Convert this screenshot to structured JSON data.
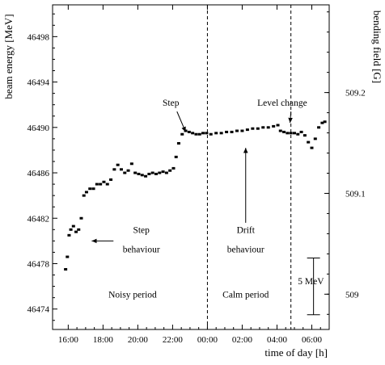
{
  "chart_data": {
    "type": "scatter",
    "title": "",
    "xlabel": "time of day [h]",
    "ylabel": "beam energy [MeV]",
    "y2label": "bending field [G]",
    "xlim": [
      15.1,
      31.0
    ],
    "ylim": [
      46472.2,
      46500.8
    ],
    "y2lim": [
      508.965,
      509.287
    ],
    "grid": false,
    "x_ticks": [
      {
        "value": 16,
        "label": "16:00"
      },
      {
        "value": 18,
        "label": "18:00"
      },
      {
        "value": 20,
        "label": "20:00"
      },
      {
        "value": 22,
        "label": "22:00"
      },
      {
        "value": 24,
        "label": "00:00"
      },
      {
        "value": 26,
        "label": "02:00"
      },
      {
        "value": 28,
        "label": "04:00"
      },
      {
        "value": 30,
        "label": "06:00"
      }
    ],
    "y_ticks": [
      46474,
      46478,
      46482,
      46486,
      46490,
      46494,
      46498
    ],
    "y2_ticks": [
      {
        "value": 509.0,
        "label": "509"
      },
      {
        "value": 509.1,
        "label": "509.1"
      },
      {
        "value": 509.2,
        "label": "509.2"
      }
    ],
    "vlines": [
      24,
      28.8
    ],
    "series": [
      {
        "points": [
          [
            15.85,
            46477.5
          ],
          [
            15.95,
            46478.6
          ],
          [
            16.05,
            46480.5
          ],
          [
            16.15,
            46481.0
          ],
          [
            16.3,
            46481.3
          ],
          [
            16.45,
            46480.8
          ],
          [
            16.6,
            46481.0
          ],
          [
            16.75,
            46482.0
          ],
          [
            16.9,
            46484.0
          ],
          [
            17.05,
            46484.3
          ],
          [
            17.25,
            46484.6
          ],
          [
            17.45,
            46484.6
          ],
          [
            17.65,
            46485.0
          ],
          [
            17.85,
            46485.0
          ],
          [
            18.05,
            46485.2
          ],
          [
            18.25,
            46485.0
          ],
          [
            18.45,
            46485.4
          ],
          [
            18.65,
            46486.3
          ],
          [
            18.85,
            46486.7
          ],
          [
            19.05,
            46486.3
          ],
          [
            19.25,
            46486.0
          ],
          [
            19.45,
            46486.2
          ],
          [
            19.65,
            46486.8
          ],
          [
            19.85,
            46486.0
          ],
          [
            20.05,
            46485.9
          ],
          [
            20.25,
            46485.8
          ],
          [
            20.45,
            46485.7
          ],
          [
            20.65,
            46485.9
          ],
          [
            20.85,
            46486.0
          ],
          [
            21.05,
            46485.9
          ],
          [
            21.25,
            46486.0
          ],
          [
            21.45,
            46486.1
          ],
          [
            21.65,
            46486.0
          ],
          [
            21.85,
            46486.2
          ],
          [
            22.05,
            46486.4
          ],
          [
            22.2,
            46487.4
          ],
          [
            22.35,
            46488.6
          ],
          [
            22.55,
            46489.4
          ],
          [
            22.75,
            46489.7
          ],
          [
            22.95,
            46489.6
          ],
          [
            23.15,
            46489.5
          ],
          [
            23.35,
            46489.4
          ],
          [
            23.55,
            46489.4
          ],
          [
            23.75,
            46489.5
          ],
          [
            23.95,
            46489.5
          ],
          [
            24.2,
            46489.4
          ],
          [
            24.5,
            46489.5
          ],
          [
            24.8,
            46489.5
          ],
          [
            25.1,
            46489.6
          ],
          [
            25.4,
            46489.6
          ],
          [
            25.7,
            46489.7
          ],
          [
            26.0,
            46489.7
          ],
          [
            26.3,
            46489.8
          ],
          [
            26.6,
            46489.9
          ],
          [
            26.9,
            46489.9
          ],
          [
            27.2,
            46490.0
          ],
          [
            27.5,
            46490.0
          ],
          [
            27.8,
            46490.1
          ],
          [
            28.05,
            46490.2
          ],
          [
            28.2,
            46489.7
          ],
          [
            28.4,
            46489.6
          ],
          [
            28.6,
            46489.5
          ],
          [
            28.8,
            46489.5
          ],
          [
            29.0,
            46489.5
          ],
          [
            29.2,
            46489.4
          ],
          [
            29.4,
            46489.6
          ],
          [
            29.6,
            46489.3
          ],
          [
            29.8,
            46488.7
          ],
          [
            30.0,
            46488.2
          ],
          [
            30.2,
            46489.0
          ],
          [
            30.4,
            46490.0
          ],
          [
            30.6,
            46490.4
          ],
          [
            30.75,
            46490.5
          ]
        ]
      }
    ],
    "annotations": [
      {
        "text": "Step",
        "x": 21.9,
        "y": 46491.9
      },
      {
        "text": "Level change",
        "x": 28.3,
        "y": 46491.9
      },
      {
        "text": "Step",
        "x": 20.2,
        "y": 46480.7
      },
      {
        "text": "behaviour",
        "x": 20.2,
        "y": 46479.0
      },
      {
        "text": "Drift",
        "x": 26.2,
        "y": 46480.7
      },
      {
        "text": "behaviour",
        "x": 26.2,
        "y": 46479.0
      },
      {
        "text": "Noisy period",
        "x": 19.7,
        "y": 46475.0
      },
      {
        "text": "Calm period",
        "x": 26.2,
        "y": 46475.0
      },
      {
        "text": "5 MeV",
        "x": 29.2,
        "y": 46476.2
      }
    ],
    "scale_bar": {
      "label": "5 MeV",
      "from": 46473.5,
      "to": 46478.5
    }
  }
}
